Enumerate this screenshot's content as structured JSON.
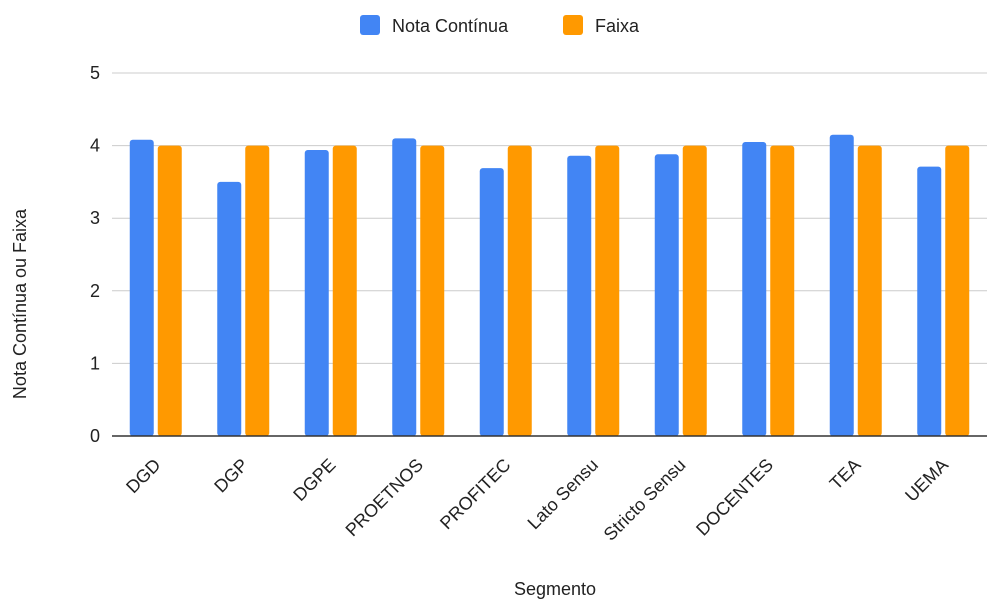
{
  "chart_data": {
    "type": "bar",
    "categories": [
      "DGD",
      "DGP",
      "DGPE",
      "PROETNOS",
      "PROFITEC",
      "Lato Sensu",
      "Stricto Sensu",
      "DOCENTES",
      "TEA",
      "UEMA"
    ],
    "series": [
      {
        "name": "Nota Contínua",
        "color": "#4285F4",
        "values": [
          4.08,
          3.5,
          3.94,
          4.1,
          3.69,
          3.86,
          3.88,
          4.05,
          4.15,
          3.71
        ]
      },
      {
        "name": "Faixa",
        "color": "#FF9900",
        "values": [
          4,
          4,
          4,
          4,
          4,
          4,
          4,
          4,
          4,
          4
        ]
      }
    ],
    "xlabel": "Segmento",
    "ylabel": "Nota Contínua ou Faixa",
    "ylim": [
      0,
      5
    ],
    "yticks": [
      "0",
      "1",
      "2",
      "3",
      "4",
      "5"
    ],
    "grid": true,
    "legend_position": "top-center"
  }
}
